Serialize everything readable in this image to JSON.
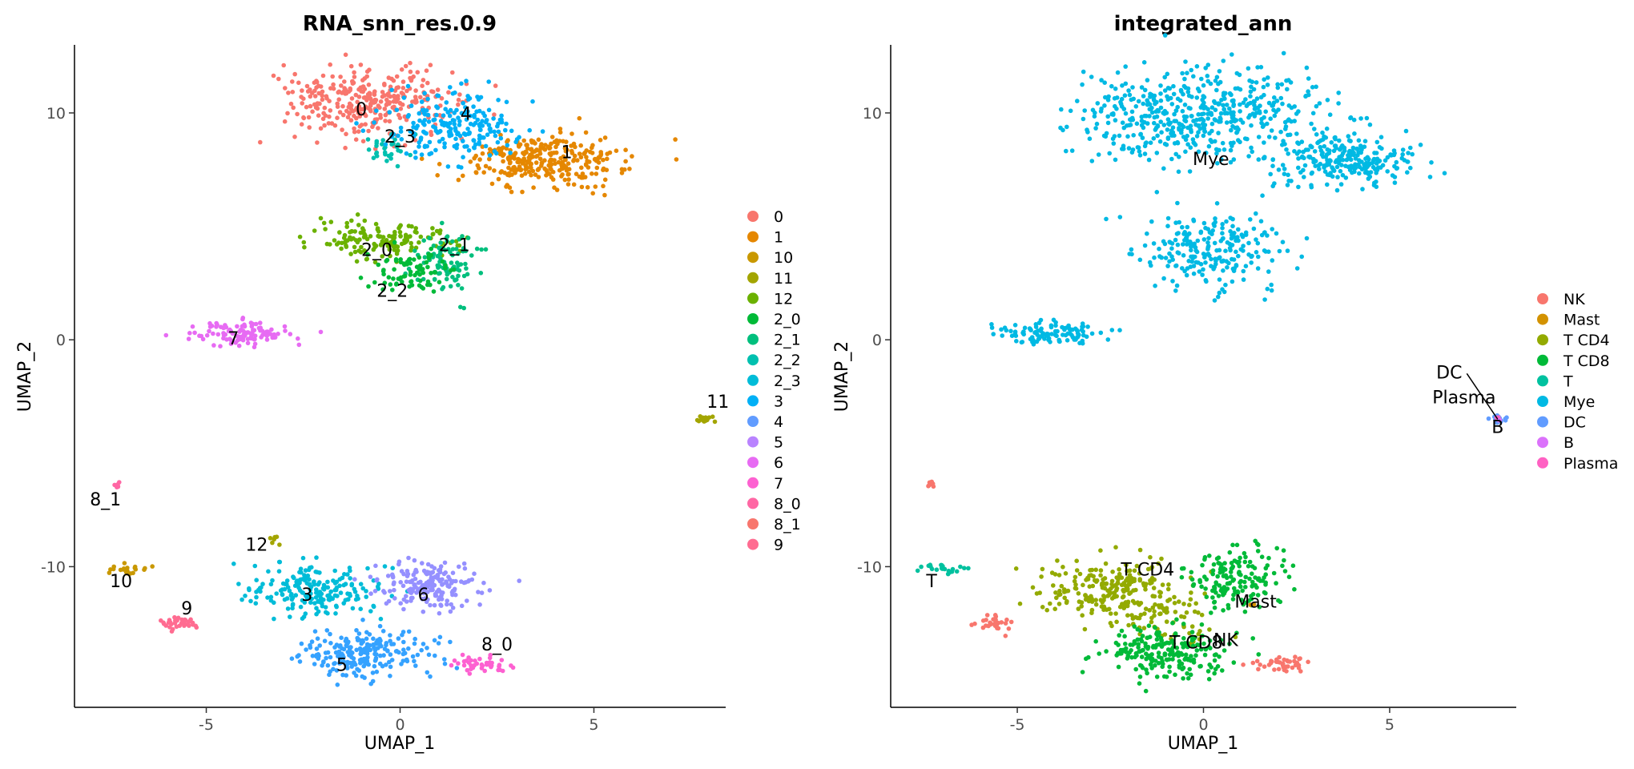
{
  "chart_data": [
    {
      "type": "scatter",
      "title": "RNA_snn_res.0.9",
      "xlabel": "UMAP_1",
      "ylabel": "UMAP_2",
      "xlim": [
        -8.4,
        8.4
      ],
      "ylim": [
        -16.2,
        13.0
      ],
      "xticks": [
        -5,
        0,
        5
      ],
      "yticks": [
        -10,
        0,
        10
      ],
      "xtick_labels": [
        "-5",
        "0",
        "5"
      ],
      "ytick_labels": [
        "-10",
        "0",
        "10"
      ],
      "grid": false,
      "legend_position": "right",
      "legend": [
        {
          "label": "0",
          "color": "#F8766D"
        },
        {
          "label": "1",
          "color": "#E58700"
        },
        {
          "label": "10",
          "color": "#C99800"
        },
        {
          "label": "11",
          "color": "#A3A500"
        },
        {
          "label": "12",
          "color": "#6BB100"
        },
        {
          "label": "2_0",
          "color": "#00BA38"
        },
        {
          "label": "2_1",
          "color": "#00BF7D"
        },
        {
          "label": "2_2",
          "color": "#00C0AF"
        },
        {
          "label": "2_3",
          "color": "#00BCD8"
        },
        {
          "label": "3",
          "color": "#00B0F6"
        },
        {
          "label": "4",
          "color": "#619CFF"
        },
        {
          "label": "5",
          "color": "#B983FF"
        },
        {
          "label": "6",
          "color": "#E76BF3"
        },
        {
          "label": "7",
          "color": "#FD61D1"
        },
        {
          "label": "8_0",
          "color": "#FF67A4"
        },
        {
          "label": "8_1",
          "color": "#F8766D"
        },
        {
          "label": "9",
          "color": "#FF6C91"
        }
      ],
      "clusters": [
        {
          "label": "0",
          "color": "#F8766D",
          "cx": -0.8,
          "cy": 10.5,
          "sx": 1.1,
          "sy": 0.8,
          "n": 320,
          "lx": -1.0,
          "ly": 9.9
        },
        {
          "label": "1",
          "color": "#E58700",
          "cx": 3.7,
          "cy": 7.9,
          "sx": 1.0,
          "sy": 0.55,
          "n": 300,
          "lx": 4.3,
          "ly": 8.0
        },
        {
          "label": "2_3",
          "color": "#00C0AF",
          "cx": -0.4,
          "cy": 8.5,
          "sx": 0.35,
          "sy": 0.35,
          "n": 30,
          "lx": 0.0,
          "ly": 8.7
        },
        {
          "label": "4",
          "color": "#00B0F6",
          "cx": 1.3,
          "cy": 9.5,
          "sx": 0.85,
          "sy": 0.75,
          "n": 220,
          "lx": 1.7,
          "ly": 9.7
        },
        {
          "label": "2_0",
          "color": "#6BB100",
          "cx": -0.5,
          "cy": 4.4,
          "sx": 0.85,
          "sy": 0.4,
          "n": 150,
          "lx": -0.6,
          "ly": 3.7
        },
        {
          "label": "2_1",
          "color": "#00BF7D",
          "cx": 1.2,
          "cy": 3.4,
          "sx": 0.45,
          "sy": 0.7,
          "n": 90,
          "lx": 1.4,
          "ly": 3.9
        },
        {
          "label": "2_2",
          "color": "#00BA38",
          "cx": 0.3,
          "cy": 3.0,
          "sx": 0.55,
          "sy": 0.45,
          "n": 80,
          "lx": -0.2,
          "ly": 1.9
        },
        {
          "label": "7",
          "color": "#E76BF3",
          "cx": -4.0,
          "cy": 0.3,
          "sx": 0.7,
          "sy": 0.25,
          "n": 110,
          "lx": -4.3,
          "ly": -0.2
        },
        {
          "label": "11",
          "color": "#A3A500",
          "cx": 7.9,
          "cy": -3.5,
          "sx": 0.12,
          "sy": 0.08,
          "n": 20,
          "lx": 8.2,
          "ly": -3.0
        },
        {
          "label": "8_1",
          "color": "#FF67A4",
          "cx": -7.3,
          "cy": -6.35,
          "sx": 0.05,
          "sy": 0.08,
          "n": 8,
          "lx": -7.6,
          "ly": -7.3
        },
        {
          "label": "10",
          "color": "#C99800",
          "cx": -7.0,
          "cy": -10.1,
          "sx": 0.3,
          "sy": 0.12,
          "n": 22,
          "lx": -7.2,
          "ly": -10.9
        },
        {
          "label": "12",
          "color": "#A3A500",
          "cx": -3.3,
          "cy": -8.8,
          "sx": 0.08,
          "sy": 0.15,
          "n": 6,
          "lx": -3.7,
          "ly": -9.3
        },
        {
          "label": "3",
          "color": "#00BCD8",
          "cx": -2.2,
          "cy": -11.0,
          "sx": 0.9,
          "sy": 0.6,
          "n": 200,
          "lx": -2.4,
          "ly": -11.5
        },
        {
          "label": "6",
          "color": "#9590FF",
          "cx": 0.8,
          "cy": -10.8,
          "sx": 0.7,
          "sy": 0.6,
          "n": 180,
          "lx": 0.6,
          "ly": -11.5
        },
        {
          "label": "5",
          "color": "#35A2FF",
          "cx": -1.0,
          "cy": -13.8,
          "sx": 0.8,
          "sy": 0.55,
          "n": 220,
          "lx": -1.5,
          "ly": -14.6
        },
        {
          "label": "9",
          "color": "#FF6C91",
          "cx": -5.7,
          "cy": -12.5,
          "sx": 0.25,
          "sy": 0.2,
          "n": 35,
          "lx": -5.5,
          "ly": -12.1
        },
        {
          "label": "8_0",
          "color": "#FD61D1",
          "cx": 2.1,
          "cy": -14.3,
          "sx": 0.35,
          "sy": 0.18,
          "n": 40,
          "lx": 2.5,
          "ly": -13.7
        }
      ]
    },
    {
      "type": "scatter",
      "title": "integrated_ann",
      "xlabel": "UMAP_1",
      "ylabel": "UMAP_2",
      "xlim": [
        -8.4,
        8.4
      ],
      "ylim": [
        -16.2,
        13.0
      ],
      "xticks": [
        -5,
        0,
        5
      ],
      "yticks": [
        -10,
        0,
        10
      ],
      "xtick_labels": [
        "-5",
        "0",
        "5"
      ],
      "ytick_labels": [
        "-10",
        "0",
        "10"
      ],
      "grid": false,
      "legend_position": "right",
      "legend": [
        {
          "label": "NK",
          "color": "#F8766D"
        },
        {
          "label": "Mast",
          "color": "#D39200"
        },
        {
          "label": "T CD4",
          "color": "#93AA00"
        },
        {
          "label": "T CD8",
          "color": "#00BA38"
        },
        {
          "label": "T",
          "color": "#00C19F"
        },
        {
          "label": "Mye",
          "color": "#00B9E3"
        },
        {
          "label": "DC",
          "color": "#619CFF"
        },
        {
          "label": "B",
          "color": "#DB72FB"
        },
        {
          "label": "Plasma",
          "color": "#FF61C3"
        }
      ],
      "clusters": [
        {
          "label": "Mye",
          "color": "#00B9E3",
          "cx": -0.3,
          "cy": 9.9,
          "sx": 1.6,
          "sy": 1.0,
          "n": 520,
          "lx": 0.2,
          "ly": 7.7
        },
        {
          "label": "",
          "color": "#00B9E3",
          "cx": 3.8,
          "cy": 7.9,
          "sx": 1.0,
          "sy": 0.6,
          "n": 250
        },
        {
          "label": "",
          "color": "#00B9E3",
          "cx": 0.2,
          "cy": 3.9,
          "sx": 1.0,
          "sy": 0.8,
          "n": 230
        },
        {
          "label": "",
          "color": "#00B9E3",
          "cx": -4.0,
          "cy": 0.3,
          "sx": 0.7,
          "sy": 0.25,
          "n": 110
        },
        {
          "label": "DC",
          "color": "#619CFF",
          "cx": 7.9,
          "cy": -3.5,
          "sx": 0.12,
          "sy": 0.08,
          "n": 20,
          "lx": 6.6,
          "ly": -1.7
        },
        {
          "label": "Plasma",
          "color": "#FF61C3",
          "cx": 7.9,
          "cy": -3.45,
          "sx": 0.02,
          "sy": 0.02,
          "n": 2,
          "lx": 7.0,
          "ly": -2.8
        },
        {
          "label": "B",
          "color": "#DB72FB",
          "cx": 7.95,
          "cy": -3.55,
          "sx": 0.02,
          "sy": 0.02,
          "n": 2,
          "lx": 7.9,
          "ly": -4.1
        },
        {
          "label": "",
          "color": "#F8766D",
          "cx": -7.3,
          "cy": -6.35,
          "sx": 0.05,
          "sy": 0.08,
          "n": 8
        },
        {
          "label": "T",
          "color": "#00C19F",
          "cx": -7.0,
          "cy": -10.1,
          "sx": 0.3,
          "sy": 0.12,
          "n": 22,
          "lx": -7.3,
          "ly": -10.9
        },
        {
          "label": "T CD4",
          "color": "#93AA00",
          "cx": -2.4,
          "cy": -11.0,
          "sx": 0.9,
          "sy": 0.65,
          "n": 230,
          "lx": -1.5,
          "ly": -10.4
        },
        {
          "label": "",
          "color": "#93AA00",
          "cx": -1.0,
          "cy": -12.3,
          "sx": 0.6,
          "sy": 0.5,
          "n": 60
        },
        {
          "label": "",
          "color": "#00BA38",
          "cx": 0.9,
          "cy": -10.6,
          "sx": 0.6,
          "sy": 0.65,
          "n": 160
        },
        {
          "label": "T CD8",
          "color": "#00BA38",
          "cx": -1.1,
          "cy": -13.8,
          "sx": 0.8,
          "sy": 0.55,
          "n": 210,
          "lx": -0.2,
          "ly": -13.6
        },
        {
          "label": "",
          "color": "#F8766D",
          "cx": -5.6,
          "cy": -12.5,
          "sx": 0.25,
          "sy": 0.2,
          "n": 30
        },
        {
          "label": "NK",
          "color": "#F8766D",
          "cx": 2.1,
          "cy": -14.3,
          "sx": 0.35,
          "sy": 0.18,
          "n": 40,
          "lx": 0.6,
          "ly": -13.5
        },
        {
          "label": "Mast",
          "color": "#D39200",
          "cx": 1.3,
          "cy": -11.8,
          "sx": 0.1,
          "sy": 0.1,
          "n": 2,
          "lx": 1.4,
          "ly": -11.8
        }
      ]
    }
  ]
}
